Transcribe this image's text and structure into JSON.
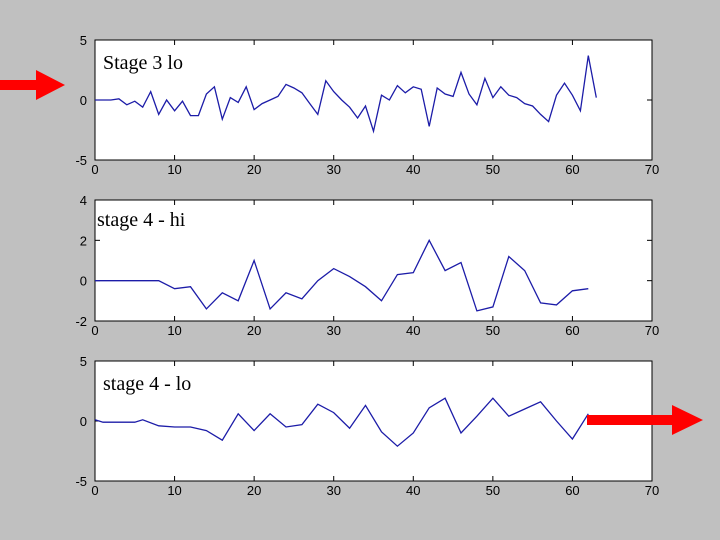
{
  "chart_data": [
    {
      "type": "line",
      "title": "Stage 3 lo",
      "color": "#1c1ca8",
      "x": [
        0,
        1,
        2,
        3,
        4,
        5,
        6,
        7,
        8,
        9,
        10,
        11,
        12,
        13,
        14,
        15,
        16,
        17,
        18,
        19,
        20,
        21,
        22,
        23,
        24,
        25,
        26,
        27,
        28,
        29,
        30,
        31,
        32,
        33,
        34,
        35,
        36,
        37,
        38,
        39,
        40,
        41,
        42,
        43,
        44,
        45,
        46,
        47,
        48,
        49,
        50,
        51,
        52,
        53,
        54,
        55,
        56,
        57,
        58,
        59,
        60,
        61,
        62,
        63
      ],
      "values": [
        0,
        0,
        0,
        0.1,
        -0.4,
        -0.1,
        -0.6,
        0.7,
        -1.2,
        0,
        -0.9,
        -0.1,
        -1.3,
        -1.3,
        0.5,
        1.1,
        -1.6,
        0.2,
        -0.2,
        1.1,
        -0.8,
        -0.3,
        0,
        0.3,
        1.3,
        1,
        0.6,
        -0.3,
        -1.2,
        1.6,
        0.7,
        0,
        -0.6,
        -1.5,
        -0.5,
        -2.6,
        0.4,
        0,
        1.2,
        0.6,
        1.1,
        0.9,
        -2.2,
        1,
        0.5,
        0.3,
        2.3,
        0.5,
        -0.4,
        1.8,
        0.2,
        1.1,
        0.4,
        0.2,
        -0.3,
        -0.5,
        -1.2,
        -1.8,
        0.4,
        1.4,
        0.4,
        -0.9,
        3.7,
        0.2
      ],
      "xlim": [
        0,
        70
      ],
      "ylim": [
        -5,
        5
      ],
      "xticks": [
        0,
        10,
        20,
        30,
        40,
        50,
        60,
        70
      ],
      "yticks": [
        -5,
        0,
        5
      ]
    },
    {
      "type": "line",
      "title": "stage 4 - hi",
      "color": "#1c1ca8",
      "x": [
        0,
        2,
        4,
        6,
        8,
        10,
        12,
        14,
        16,
        18,
        20,
        22,
        24,
        26,
        28,
        30,
        32,
        34,
        36,
        38,
        40,
        42,
        44,
        46,
        48,
        50,
        52,
        54,
        56,
        58,
        60,
        62
      ],
      "values": [
        0,
        0,
        0,
        0,
        0,
        -0.4,
        -0.3,
        -1.4,
        -0.6,
        -1,
        1,
        -1.4,
        -0.6,
        -0.9,
        0,
        0.6,
        0.2,
        -0.3,
        -1,
        0.3,
        0.4,
        2,
        0.5,
        0.9,
        -1.5,
        -1.3,
        1.2,
        0.5,
        -1.1,
        -1.2,
        -0.5,
        -0.4
      ],
      "xlim": [
        0,
        70
      ],
      "ylim": [
        -2,
        4
      ],
      "xticks": [
        0,
        10,
        20,
        30,
        40,
        50,
        60,
        70
      ],
      "yticks": [
        -2,
        0,
        2,
        4
      ]
    },
    {
      "type": "line",
      "title": "stage 4 - lo",
      "color": "#1c1ca8",
      "x": [
        0,
        1,
        3,
        5,
        6,
        8,
        10,
        12,
        14,
        16,
        18,
        20,
        22,
        24,
        26,
        28,
        30,
        32,
        34,
        36,
        38,
        40,
        42,
        44,
        46,
        48,
        50,
        52,
        54,
        56,
        58,
        60,
        62
      ],
      "values": [
        0.1,
        -0.1,
        -0.1,
        -0.1,
        0.1,
        -0.4,
        -0.5,
        -0.5,
        -0.8,
        -1.6,
        0.6,
        -0.8,
        0.6,
        -0.5,
        -0.3,
        1.4,
        0.7,
        -0.6,
        1.3,
        -0.9,
        -2.1,
        -1,
        1.1,
        1.9,
        -1,
        0.4,
        1.9,
        0.4,
        1,
        1.6,
        0,
        -1.5,
        0.6
      ],
      "xlim": [
        0,
        70
      ],
      "ylim": [
        -5,
        5
      ],
      "xticks": [
        0,
        10,
        20,
        30,
        40,
        50,
        60,
        70
      ],
      "yticks": [
        -5,
        0,
        5
      ]
    }
  ]
}
